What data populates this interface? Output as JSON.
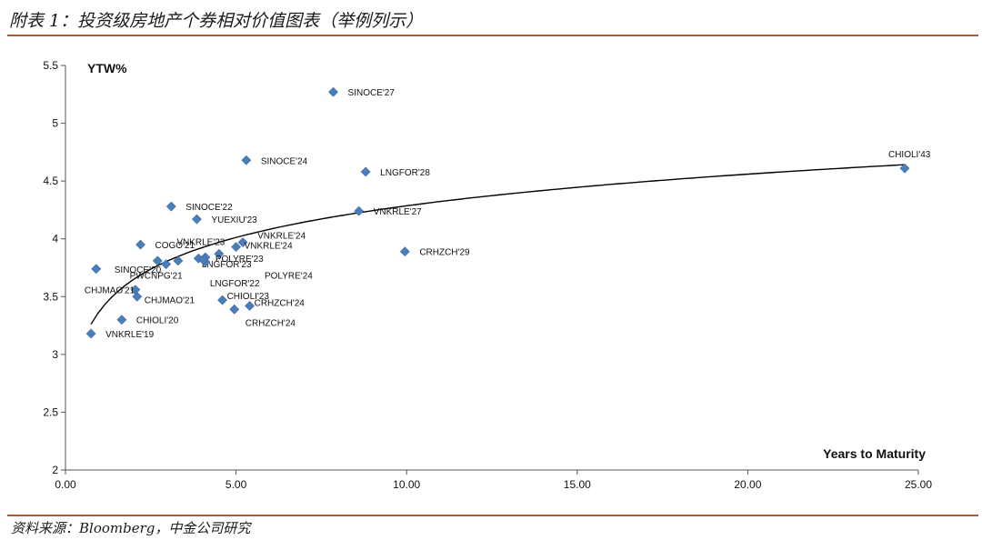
{
  "header": {
    "title": "附表 1：投资级房地产个券相对价值图表（举例列示）"
  },
  "footer": {
    "source": "资料来源：Bloomberg，中金公司研究"
  },
  "colors": {
    "accent_rule": "#b35a2d",
    "marker": "#4a7ebb",
    "curve": "#000000"
  },
  "chart_data": {
    "type": "scatter",
    "title": "",
    "xlabel": "Years to Maturity",
    "ylabel": "YTW%",
    "xlim": [
      0,
      25
    ],
    "ylim": [
      2,
      5.5
    ],
    "x_ticks": [
      0,
      5,
      10,
      15,
      20,
      25
    ],
    "x_tick_labels": [
      "0.00",
      "5.00",
      "10.00",
      "15.00",
      "20.00",
      "25.00"
    ],
    "y_ticks": [
      2,
      2.5,
      3,
      3.5,
      4,
      4.5,
      5,
      5.5
    ],
    "y_tick_labels": [
      "2",
      "2.5",
      "3",
      "3.5",
      "4",
      "4.5",
      "5",
      "5.5"
    ],
    "grid": false,
    "legend": "none",
    "trendline": {
      "type": "logarithmic"
    },
    "points": [
      {
        "label": "SINOCE'27",
        "x": 7.85,
        "y": 5.27
      },
      {
        "label": "SINOCE'24",
        "x": 5.3,
        "y": 4.68
      },
      {
        "label": "LNGFOR'28",
        "x": 8.8,
        "y": 4.58
      },
      {
        "label": "CHIOLI'43",
        "x": 24.6,
        "y": 4.61
      },
      {
        "label": "SINOCE'22",
        "x": 3.1,
        "y": 4.28
      },
      {
        "label": "VNKRLE'27",
        "x": 8.6,
        "y": 4.24
      },
      {
        "label": "YUEXIU'23",
        "x": 3.85,
        "y": 4.17
      },
      {
        "label": "COGO'21",
        "x": 2.2,
        "y": 3.95
      },
      {
        "label": "VNKRLE'24",
        "x": 5.2,
        "y": 3.97
      },
      {
        "label": "VNKRLE'23",
        "x": 3.9,
        "y": 3.83
      },
      {
        "label": "VNKRLE'24",
        "x": 5.0,
        "y": 3.93
      },
      {
        "label": "CRHZCH'29",
        "x": 9.95,
        "y": 3.89
      },
      {
        "label": "POLYRE'23",
        "x": 4.5,
        "y": 3.87
      },
      {
        "label": "LNGFOR'23",
        "x": 4.1,
        "y": 3.84
      },
      {
        "label": "",
        "x": 2.7,
        "y": 3.81
      },
      {
        "label": "",
        "x": 3.3,
        "y": 3.81
      },
      {
        "label": "PWCNPG'21",
        "x": 2.95,
        "y": 3.78
      },
      {
        "label": "LNGFOR'22",
        "x": 4.1,
        "y": 3.8
      },
      {
        "label": "POLYRE'24",
        "x": 4.05,
        "y": 3.82
      },
      {
        "label": "SINOCE'20",
        "x": 0.9,
        "y": 3.74
      },
      {
        "label": "CHJMAO'21",
        "x": 2.05,
        "y": 3.56
      },
      {
        "label": "CHJMAO'21",
        "x": 2.1,
        "y": 3.5
      },
      {
        "label": "CHIOLI'23",
        "x": 4.6,
        "y": 3.47
      },
      {
        "label": "CRHZCH'24",
        "x": 5.4,
        "y": 3.42
      },
      {
        "label": "CRHZCH'24",
        "x": 4.95,
        "y": 3.39
      },
      {
        "label": "CHIOLI'20",
        "x": 1.65,
        "y": 3.3
      },
      {
        "label": "VNKRLE'19",
        "x": 0.75,
        "y": 3.18
      }
    ]
  }
}
